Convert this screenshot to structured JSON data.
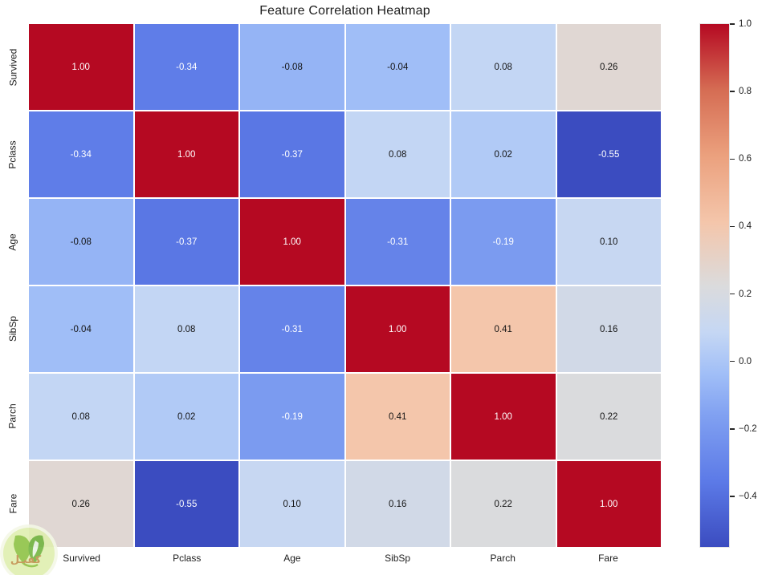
{
  "title": "Feature Correlation Heatmap",
  "watermark": {
    "text": "كفيـل"
  },
  "chart_data": {
    "type": "heatmap",
    "title": "Feature Correlation Heatmap",
    "categories": [
      "Survived",
      "Pclass",
      "Age",
      "SibSp",
      "Parch",
      "Fare"
    ],
    "matrix": [
      [
        1.0,
        -0.34,
        -0.08,
        -0.04,
        0.08,
        0.26
      ],
      [
        -0.34,
        1.0,
        -0.37,
        0.08,
        0.02,
        -0.55
      ],
      [
        -0.08,
        -0.37,
        1.0,
        -0.31,
        -0.19,
        0.1
      ],
      [
        -0.04,
        0.08,
        -0.31,
        1.0,
        0.41,
        0.16
      ],
      [
        0.08,
        0.02,
        -0.19,
        0.41,
        1.0,
        0.22
      ],
      [
        0.26,
        -0.55,
        0.1,
        0.16,
        0.22,
        1.0
      ]
    ],
    "annot_decimals": 2,
    "vmin": -0.55,
    "vmax": 1.0,
    "colormap": "coolwarm",
    "grid_line_color": "#ffffff",
    "legend_position": "right-colorbar",
    "colorbar_ticks": [
      {
        "value": 1.0,
        "label": "1.0"
      },
      {
        "value": 0.8,
        "label": "0.8"
      },
      {
        "value": 0.6,
        "label": "0.6"
      },
      {
        "value": 0.4,
        "label": "0.4"
      },
      {
        "value": 0.2,
        "label": "0.2"
      },
      {
        "value": 0.0,
        "label": "0.0"
      },
      {
        "value": -0.2,
        "label": "−0.2"
      },
      {
        "value": -0.4,
        "label": "−0.4"
      }
    ]
  },
  "colors": {
    "annot_light": "#ffffff",
    "annot_dark": "#141414",
    "gradient": [
      [
        0.0,
        "#3b4cc0"
      ],
      [
        0.125,
        "#5c7ae7"
      ],
      [
        0.25,
        "#80a0f1"
      ],
      [
        0.33,
        "#a0bef7"
      ],
      [
        0.41,
        "#c5d7f4"
      ],
      [
        0.5,
        "#dbdbdc"
      ],
      [
        0.62,
        "#f4c6ab"
      ],
      [
        0.75,
        "#eba07d"
      ],
      [
        0.875,
        "#d56c53"
      ],
      [
        1.0,
        "#b50922"
      ]
    ]
  }
}
